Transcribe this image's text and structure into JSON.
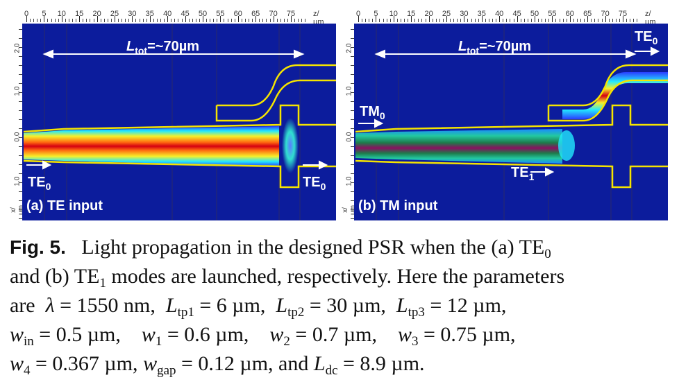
{
  "ruler_x_ticks": [
    "0",
    "5",
    "10",
    "15",
    "20",
    "25",
    "30",
    "35",
    "40",
    "45",
    "50",
    "55",
    "60",
    "65",
    "70",
    "75"
  ],
  "ruler_x_unit": "z/µm",
  "ruler_y_ticks": [
    "2.0",
    "1.0",
    "0.0",
    "1.0"
  ],
  "ruler_y_unit": "x/µm",
  "panel_a": {
    "length_label": "L",
    "length_sub": "tot",
    "length_value": "=~70µm",
    "in_label": "TE",
    "in_sub": "0",
    "out_label": "TE",
    "out_sub": "0",
    "panel_label": "(a) TE input"
  },
  "panel_b": {
    "length_label": "L",
    "length_sub": "tot",
    "length_value": "=~70µm",
    "in_label": "TM",
    "in_sub": "0",
    "cross_label": "TE",
    "cross_sub": "0",
    "converted_label": "TE",
    "converted_sub": "1",
    "panel_label": "(b) TM input"
  },
  "caption": {
    "fig": "Fig. 5.",
    "t1": "Light propagation in the designed PSR when the (a) TE",
    "s1": "0",
    "t2": "and (b) TE",
    "s2": "1",
    "t3": "modes are launched, respectively. Here the parameters",
    "t4": "are",
    "lambda": "λ",
    "t5": "= 1550 nm,",
    "L": "L",
    "tp1": "tp1",
    "v1": "= 6 µm,",
    "tp2": "tp2",
    "v2": "= 30 µm,",
    "tp3": "tp3",
    "v3": "= 12 µm,",
    "w": "w",
    "in": "in",
    "v4": "= 0.5 µm,",
    "n1": "1",
    "v5": "= 0.6 µm,",
    "n2": "2",
    "v6": "= 0.7 µm,",
    "n3": "3",
    "v7": "= 0.75 µm,",
    "n4": "4",
    "v8": "= 0.367 µm,",
    "gap": "gap",
    "v9": "= 0.12 µm, and",
    "dc": "dc",
    "v10": "= 8.9 µm."
  }
}
